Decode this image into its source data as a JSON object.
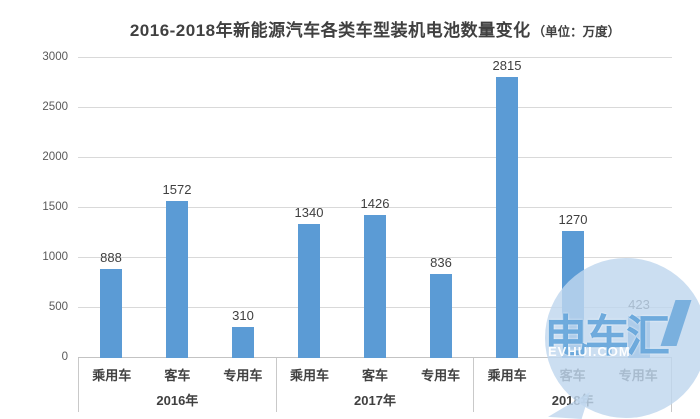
{
  "title": {
    "main": "2016-2018年新能源汽车各类车型装机电池数量变化",
    "unit": "（单位：万度）"
  },
  "colors": {
    "bar": "#5B9BD5",
    "gridline": "#D9D9D9",
    "axis_line": "#C3C3C3",
    "title_text": "#404040",
    "tick_text": "#595959",
    "watermark_bubble": "#BFD7EE",
    "watermark_brand_text": "#4E97D4",
    "watermark_site_text": "#FFFFFF"
  },
  "y_axis": {
    "ticks": [
      "3000",
      "2500",
      "2000",
      "1500",
      "1000",
      "500",
      "0"
    ]
  },
  "chart_data": {
    "type": "bar",
    "title": "2016-2018年新能源汽车各类车型装机电池数量变化（单位：万度）",
    "unit_label": "万度",
    "ylabel": "",
    "xlabel": "",
    "ylim": [
      0,
      3000
    ],
    "grid": true,
    "legend": false,
    "categories": [
      "乘用车",
      "客车",
      "专用车"
    ],
    "series_by_year": [
      {
        "year": "2016年",
        "values": [
          888,
          1572,
          310
        ]
      },
      {
        "year": "2017年",
        "values": [
          1340,
          1426,
          836
        ]
      },
      {
        "year": "2018年",
        "values": [
          2815,
          1270,
          423
        ]
      }
    ]
  },
  "watermark": {
    "brand": "电车汇",
    "site": "EVHUI.COM"
  }
}
